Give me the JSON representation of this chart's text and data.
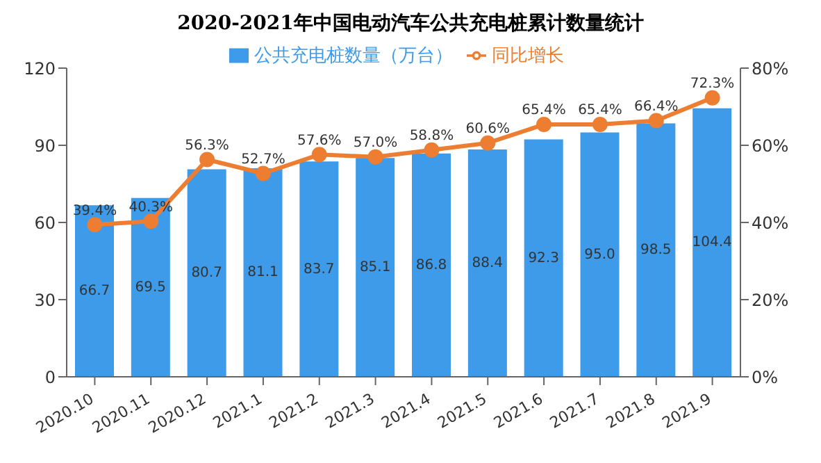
{
  "chart_data": {
    "type": "bar",
    "title": "2020-2021年中国电动汽车公共充电桩累计数量统计",
    "categories": [
      "2020.10",
      "2020.11",
      "2020.12",
      "2021.1",
      "2021.2",
      "2021.3",
      "2021.4",
      "2021.5",
      "2021.6",
      "2021.7",
      "2021.8",
      "2021.9"
    ],
    "series": [
      {
        "name": "公共充电桩数量（万台）",
        "color": "#3d9be9",
        "values": [
          66.7,
          69.5,
          80.7,
          81.1,
          83.7,
          85.1,
          86.8,
          88.4,
          92.3,
          95.0,
          98.5,
          104.4
        ],
        "value_labels": [
          "66.7",
          "69.5",
          "80.7",
          "81.1",
          "83.7",
          "85.1",
          "86.8",
          "88.4",
          "92.3",
          "95.0",
          "98.5",
          "104.4"
        ]
      },
      {
        "name": "同比增长",
        "type": "line",
        "axis": "y2",
        "color": "#ed7d31",
        "values": [
          39.4,
          40.3,
          56.3,
          52.7,
          57.6,
          57.0,
          58.8,
          60.6,
          65.4,
          65.4,
          66.4,
          72.3
        ],
        "value_labels": [
          "39.4%",
          "40.3%",
          "56.3%",
          "52.7%",
          "57.6%",
          "57.0%",
          "58.8%",
          "60.6%",
          "65.4%",
          "65.4%",
          "66.4%",
          "72.3%"
        ]
      }
    ],
    "ylim": [
      0,
      120
    ],
    "yticks": [
      0,
      30,
      60,
      90,
      120
    ],
    "y2lim": [
      0,
      80
    ],
    "y2ticks": [
      {
        "value": 0,
        "label": "0%"
      },
      {
        "value": 20,
        "label": "20%"
      },
      {
        "value": 40,
        "label": "40%"
      },
      {
        "value": 60,
        "label": "60%"
      },
      {
        "value": 80,
        "label": "80%"
      }
    ],
    "legend": "top",
    "marker": "circle",
    "grid": false
  }
}
